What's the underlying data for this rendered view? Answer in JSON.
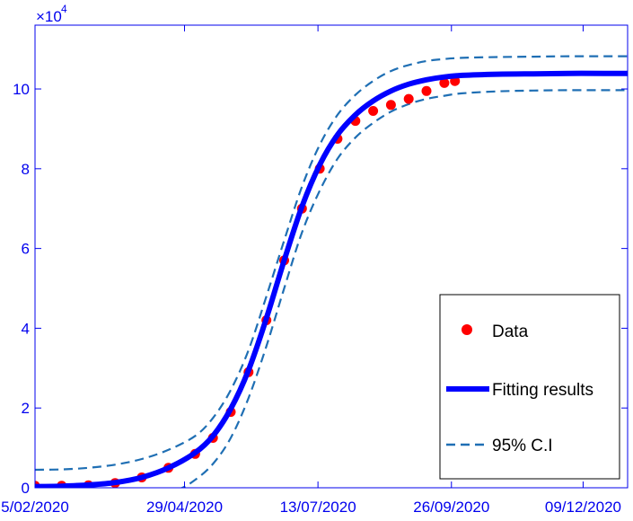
{
  "chart_data": {
    "type": "line",
    "title": "",
    "xlabel": "",
    "ylabel": "",
    "exponent_label": "×10",
    "exponent_power": "4",
    "x_ticks": [
      "5/02/2020",
      "29/04/2020",
      "13/07/2020",
      "26/09/2020",
      "09/12/2020"
    ],
    "y_ticks": [
      "0",
      "2",
      "4",
      "6",
      "8",
      "10"
    ],
    "xlim": [
      "2020-02-05",
      "2021-01-03"
    ],
    "ylim": [
      0,
      116000
    ],
    "legend": {
      "placement": "bottom-right",
      "entries": [
        {
          "label": "Data",
          "style": "red filled dots"
        },
        {
          "label": "Fitting results",
          "style": "thick solid blue line"
        },
        {
          "label": "95% C.I",
          "style": "dashed steel-blue line"
        }
      ]
    },
    "colors": {
      "data": "#ff0000",
      "fit": "#0000ff",
      "ci": "#1f6fb4",
      "axis": "#0000ee"
    },
    "series": [
      {
        "name": "Data",
        "marker": "dot",
        "x": [
          "2020-02-05",
          "2020-02-20",
          "2020-03-06",
          "2020-03-21",
          "2020-04-05",
          "2020-04-20",
          "2020-05-05",
          "2020-05-15",
          "2020-05-25",
          "2020-06-04",
          "2020-06-14",
          "2020-06-24",
          "2020-07-04",
          "2020-07-14",
          "2020-07-24",
          "2020-08-03",
          "2020-08-13",
          "2020-08-23",
          "2020-09-02",
          "2020-09-12",
          "2020-09-22",
          "2020-09-28"
        ],
        "y": [
          500,
          500,
          600,
          1200,
          2600,
          5000,
          8500,
          12500,
          19000,
          29000,
          42000,
          57000,
          70000,
          80000,
          87500,
          92000,
          94500,
          96000,
          97500,
          99500,
          101500,
          102000
        ]
      },
      {
        "name": "Fitting results",
        "x": [
          "2020-02-05",
          "2020-02-20",
          "2020-03-06",
          "2020-03-21",
          "2020-04-05",
          "2020-04-20",
          "2020-05-05",
          "2020-05-15",
          "2020-05-25",
          "2020-06-04",
          "2020-06-14",
          "2020-06-24",
          "2020-07-04",
          "2020-07-14",
          "2020-07-24",
          "2020-08-03",
          "2020-08-13",
          "2020-08-23",
          "2020-09-02",
          "2020-09-12",
          "2020-09-22",
          "2020-10-02",
          "2020-10-22",
          "2020-11-11",
          "2020-12-01",
          "2020-12-21",
          "2021-01-03"
        ],
        "y": [
          300,
          400,
          700,
          1300,
          2600,
          5000,
          8800,
          13000,
          19800,
          29500,
          42500,
          57000,
          70500,
          81000,
          88500,
          93500,
          97000,
          99500,
          101200,
          102300,
          103000,
          103400,
          103700,
          103800,
          103900,
          103900,
          103900
        ]
      },
      {
        "name": "95% C.I upper",
        "x": [
          "2020-02-05",
          "2020-02-20",
          "2020-03-06",
          "2020-03-21",
          "2020-04-05",
          "2020-04-20",
          "2020-05-05",
          "2020-05-15",
          "2020-05-25",
          "2020-06-04",
          "2020-06-14",
          "2020-06-24",
          "2020-07-04",
          "2020-07-14",
          "2020-07-24",
          "2020-08-03",
          "2020-08-13",
          "2020-08-23",
          "2020-09-02",
          "2020-09-12",
          "2020-09-22",
          "2020-10-02",
          "2020-10-22",
          "2020-11-11",
          "2020-12-01",
          "2020-12-21",
          "2021-01-03"
        ],
        "y": [
          4500,
          4600,
          5000,
          5800,
          7200,
          9500,
          13000,
          17500,
          24500,
          34500,
          48000,
          62000,
          75500,
          86000,
          93500,
          98500,
          102000,
          104500,
          106000,
          107000,
          107500,
          107800,
          108000,
          108100,
          108200,
          108200,
          108200
        ]
      },
      {
        "name": "95% C.I lower",
        "x": [
          "2020-02-05",
          "2020-03-06",
          "2020-04-05",
          "2020-04-25",
          "2020-05-05",
          "2020-05-15",
          "2020-05-25",
          "2020-06-04",
          "2020-06-14",
          "2020-06-24",
          "2020-07-04",
          "2020-07-14",
          "2020-07-24",
          "2020-08-03",
          "2020-08-13",
          "2020-08-23",
          "2020-09-02",
          "2020-09-12",
          "2020-09-22",
          "2020-10-02",
          "2020-10-22",
          "2020-11-11",
          "2020-12-01",
          "2020-12-21",
          "2021-01-03"
        ],
        "y": [
          -5000,
          -4500,
          -3000,
          -500,
          2000,
          6000,
          12500,
          22500,
          35500,
          50000,
          64000,
          74500,
          82500,
          87800,
          91500,
          94300,
          96200,
          97500,
          98300,
          98900,
          99400,
          99600,
          99700,
          99700,
          99700
        ]
      }
    ]
  }
}
